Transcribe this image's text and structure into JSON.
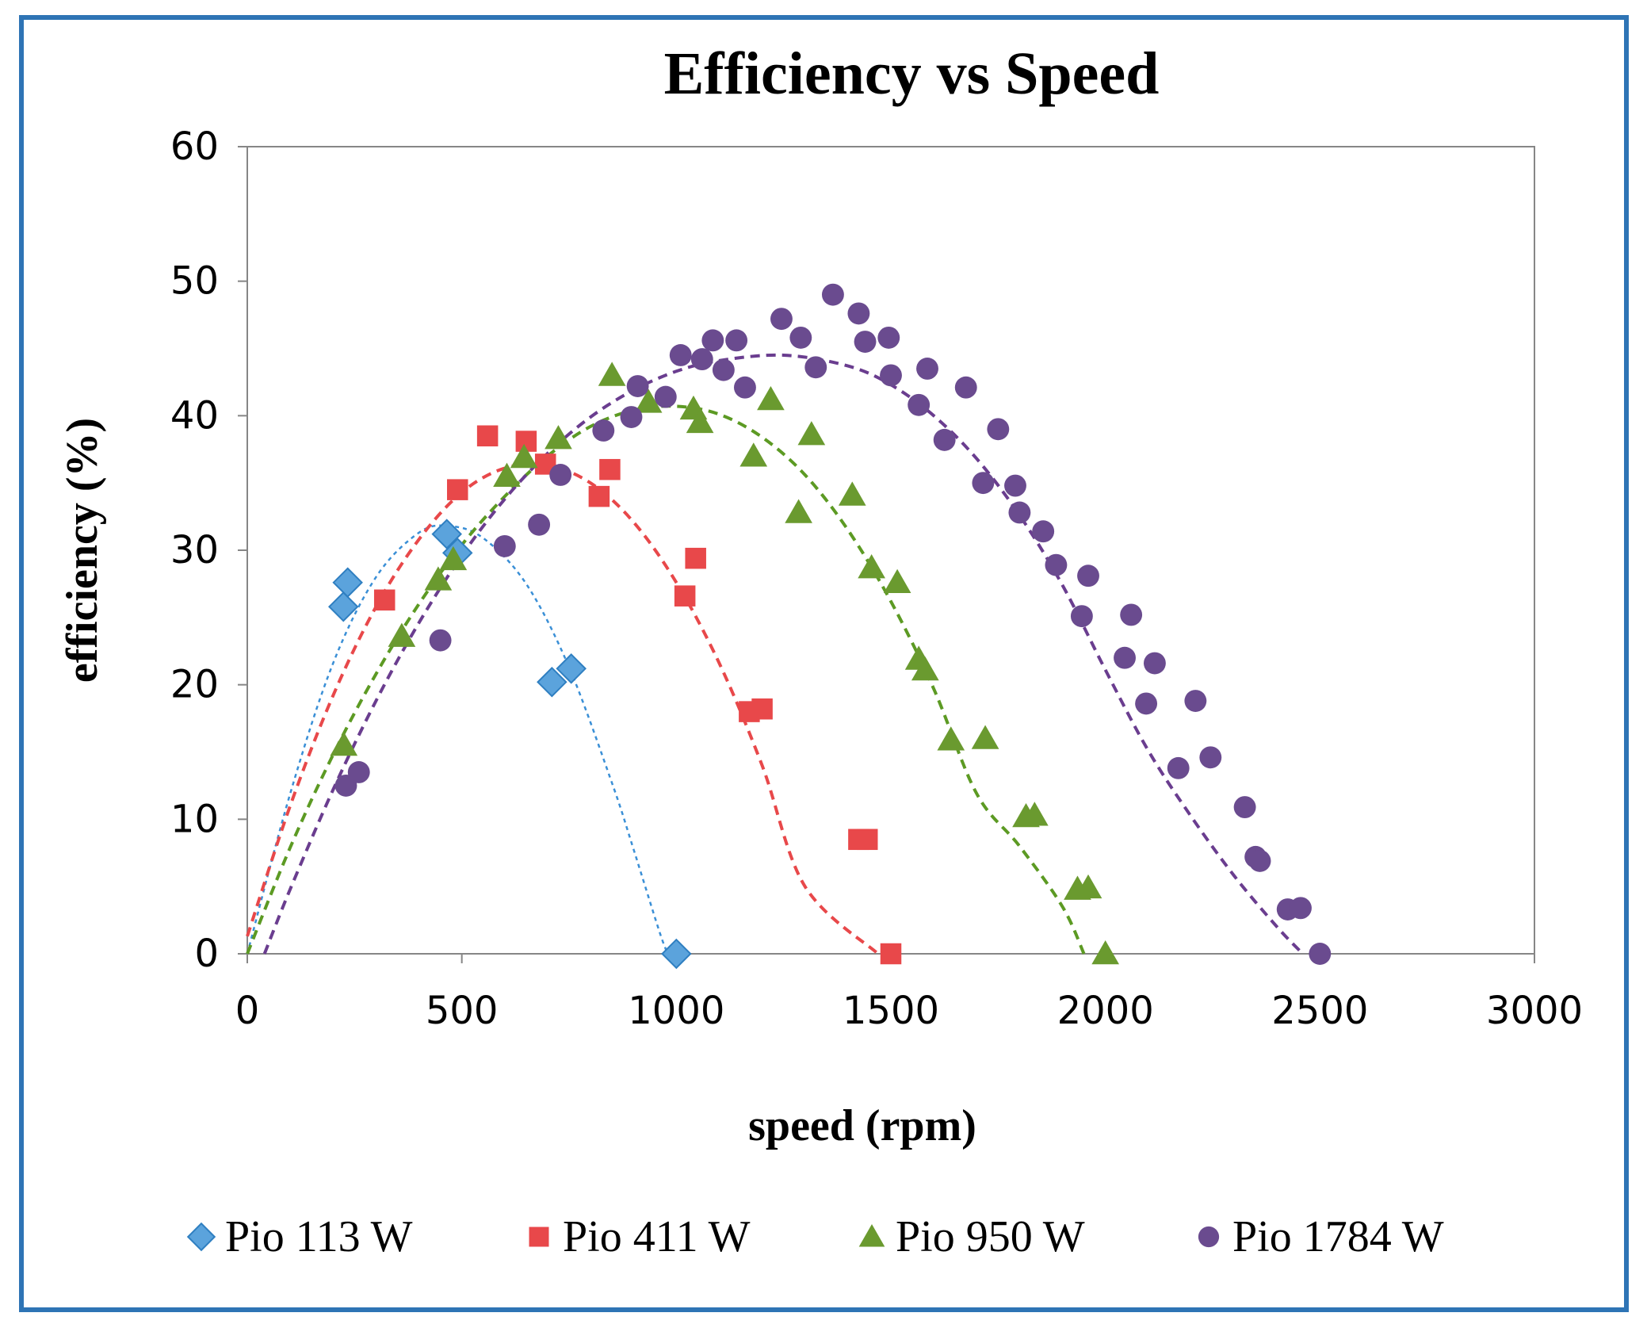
{
  "chart_data": {
    "type": "scatter",
    "title": "Efficiency vs Speed",
    "xlabel": "speed (rpm)",
    "ylabel": "efficiency (%)",
    "xlim": [
      0,
      3000
    ],
    "ylim": [
      0,
      60
    ],
    "xticks": [
      0,
      500,
      1000,
      1500,
      2000,
      2500,
      3000
    ],
    "yticks": [
      0,
      10,
      20,
      30,
      40,
      50,
      60
    ],
    "grid": false,
    "legend_position": "bottom",
    "frame_color": "#2e74b5",
    "series": [
      {
        "name": "Pio 113 W",
        "marker": "diamond",
        "color": "#5ba3dc",
        "edge_color": "#2f7fc1",
        "trend_color": "#3a8fd6",
        "trend_dash": "fine",
        "points": [
          [
            224,
            25.8
          ],
          [
            234,
            27.6
          ],
          [
            465,
            31.2
          ],
          [
            490,
            29.8
          ],
          [
            710,
            20.2
          ],
          [
            755,
            21.2
          ],
          [
            1000,
            0
          ]
        ],
        "trend": [
          [
            0,
            0
          ],
          [
            100,
            11.9
          ],
          [
            200,
            21.6
          ],
          [
            300,
            28.0
          ],
          [
            400,
            31.3
          ],
          [
            470,
            31.8
          ],
          [
            550,
            30.9
          ],
          [
            650,
            27.5
          ],
          [
            750,
            21.3
          ],
          [
            850,
            12.7
          ],
          [
            900,
            7.8
          ],
          [
            960,
            1.7
          ],
          [
            980,
            0
          ]
        ]
      },
      {
        "name": "Pio 411 W",
        "marker": "square",
        "color": "#e8484a",
        "trend_color": "#e8484a",
        "trend_dash": "dashed",
        "points": [
          [
            320,
            26.3
          ],
          [
            490,
            34.5
          ],
          [
            560,
            38.5
          ],
          [
            650,
            38.1
          ],
          [
            695,
            36.4
          ],
          [
            820,
            34.0
          ],
          [
            845,
            36.0
          ],
          [
            1020,
            26.6
          ],
          [
            1045,
            29.4
          ],
          [
            1170,
            18.0
          ],
          [
            1200,
            18.2
          ],
          [
            1425,
            8.5
          ],
          [
            1445,
            8.5
          ],
          [
            1500,
            0
          ]
        ],
        "trend": [
          [
            0,
            1.3
          ],
          [
            100,
            11.0
          ],
          [
            200,
            19.2
          ],
          [
            300,
            25.8
          ],
          [
            400,
            30.8
          ],
          [
            500,
            34.3
          ],
          [
            600,
            36.1
          ],
          [
            700,
            36.3
          ],
          [
            800,
            35.0
          ],
          [
            900,
            32.1
          ],
          [
            1000,
            27.6
          ],
          [
            1100,
            21.6
          ],
          [
            1200,
            14.0
          ],
          [
            1300,
            5.0
          ],
          [
            1470,
            0
          ]
        ]
      },
      {
        "name": "Pio 950 W",
        "marker": "triangle",
        "color": "#6a9a2f",
        "trend_color": "#5c9a23",
        "trend_dash": "dashed",
        "points": [
          [
            225,
            15.5
          ],
          [
            360,
            23.6
          ],
          [
            445,
            27.8
          ],
          [
            480,
            29.3
          ],
          [
            605,
            35.5
          ],
          [
            645,
            36.9
          ],
          [
            725,
            38.3
          ],
          [
            850,
            43.0
          ],
          [
            935,
            41.0
          ],
          [
            1040,
            40.5
          ],
          [
            1055,
            39.5
          ],
          [
            1180,
            37.0
          ],
          [
            1220,
            41.2
          ],
          [
            1285,
            32.8
          ],
          [
            1315,
            38.6
          ],
          [
            1410,
            34.1
          ],
          [
            1455,
            28.7
          ],
          [
            1515,
            27.6
          ],
          [
            1565,
            21.9
          ],
          [
            1580,
            21.1
          ],
          [
            1640,
            15.9
          ],
          [
            1720,
            16.0
          ],
          [
            1815,
            10.2
          ],
          [
            1835,
            10.3
          ],
          [
            1935,
            4.8
          ],
          [
            1960,
            4.9
          ],
          [
            2000,
            0
          ]
        ],
        "trend": [
          [
            0,
            0
          ],
          [
            100,
            7.9
          ],
          [
            200,
            14.8
          ],
          [
            300,
            20.8
          ],
          [
            400,
            26.0
          ],
          [
            500,
            30.4
          ],
          [
            600,
            34.0
          ],
          [
            700,
            37.0
          ],
          [
            800,
            39.2
          ],
          [
            900,
            40.4
          ],
          [
            1000,
            40.7
          ],
          [
            1100,
            40.1
          ],
          [
            1200,
            38.4
          ],
          [
            1300,
            35.6
          ],
          [
            1400,
            31.5
          ],
          [
            1500,
            26.2
          ],
          [
            1600,
            19.7
          ],
          [
            1700,
            11.9
          ],
          [
            1800,
            8.0
          ],
          [
            1900,
            3.5
          ],
          [
            1950,
            0
          ]
        ]
      },
      {
        "name": "Pio 1784 W",
        "marker": "circle",
        "color": "#6a4b8f",
        "trend_color": "#6a3d8f",
        "trend_dash": "dashed",
        "points": [
          [
            230,
            12.5
          ],
          [
            260,
            13.5
          ],
          [
            450,
            23.3
          ],
          [
            600,
            30.3
          ],
          [
            680,
            31.9
          ],
          [
            730,
            35.6
          ],
          [
            830,
            38.9
          ],
          [
            895,
            39.9
          ],
          [
            910,
            42.2
          ],
          [
            975,
            41.4
          ],
          [
            1010,
            44.5
          ],
          [
            1060,
            44.2
          ],
          [
            1085,
            45.6
          ],
          [
            1110,
            43.4
          ],
          [
            1140,
            45.6
          ],
          [
            1160,
            42.1
          ],
          [
            1245,
            47.2
          ],
          [
            1290,
            45.8
          ],
          [
            1325,
            43.6
          ],
          [
            1365,
            49.0
          ],
          [
            1425,
            47.6
          ],
          [
            1440,
            45.5
          ],
          [
            1495,
            45.8
          ],
          [
            1500,
            43.0
          ],
          [
            1565,
            40.8
          ],
          [
            1585,
            43.5
          ],
          [
            1625,
            38.2
          ],
          [
            1675,
            42.1
          ],
          [
            1715,
            35.0
          ],
          [
            1750,
            39.0
          ],
          [
            1790,
            34.8
          ],
          [
            1800,
            32.8
          ],
          [
            1855,
            31.4
          ],
          [
            1885,
            28.9
          ],
          [
            1945,
            25.1
          ],
          [
            1960,
            28.1
          ],
          [
            2045,
            22.0
          ],
          [
            2060,
            25.2
          ],
          [
            2095,
            18.6
          ],
          [
            2115,
            21.6
          ],
          [
            2170,
            13.8
          ],
          [
            2210,
            18.8
          ],
          [
            2245,
            14.6
          ],
          [
            2325,
            10.9
          ],
          [
            2350,
            7.2
          ],
          [
            2360,
            6.9
          ],
          [
            2425,
            3.3
          ],
          [
            2455,
            3.4
          ],
          [
            2500,
            0
          ]
        ],
        "trend": [
          [
            40,
            0
          ],
          [
            100,
            4.8
          ],
          [
            200,
            12.2
          ],
          [
            300,
            18.8
          ],
          [
            400,
            24.6
          ],
          [
            500,
            29.6
          ],
          [
            600,
            33.8
          ],
          [
            700,
            37.2
          ],
          [
            800,
            39.9
          ],
          [
            900,
            41.9
          ],
          [
            1000,
            43.3
          ],
          [
            1100,
            44.1
          ],
          [
            1250,
            44.5
          ],
          [
            1400,
            43.7
          ],
          [
            1500,
            42.3
          ],
          [
            1600,
            40.0
          ],
          [
            1700,
            36.8
          ],
          [
            1800,
            32.6
          ],
          [
            1900,
            27.4
          ],
          [
            2000,
            21.1
          ],
          [
            2100,
            15.1
          ],
          [
            2200,
            10.2
          ],
          [
            2300,
            5.8
          ],
          [
            2400,
            2.0
          ],
          [
            2460,
            0
          ]
        ]
      }
    ]
  }
}
